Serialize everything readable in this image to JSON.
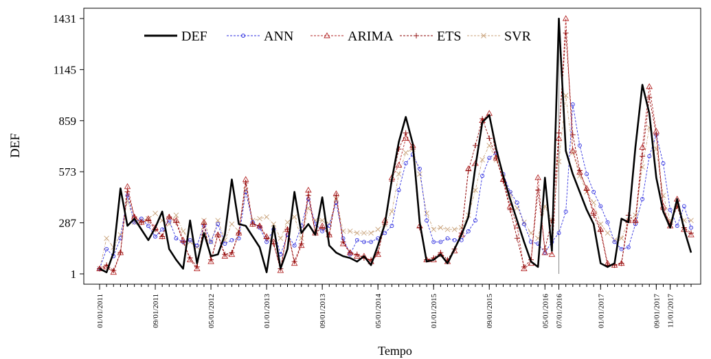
{
  "chart_data": {
    "type": "line",
    "xlabel": "Tempo",
    "ylabel": "DEF",
    "ylim": [
      1,
      1431
    ],
    "y_ticks": [
      1,
      287,
      573,
      859,
      1145,
      1431
    ],
    "x_ticks": [
      "01/01/2011",
      "09/01/2011",
      "05/01/2012",
      "01/01/2013",
      "09/01/2013",
      "05/01/2014",
      "01/01/2015",
      "09/01/2015",
      "05/01/2016",
      "07/01/2016",
      "01/01/2017",
      "09/01/2017",
      "11/01/2017"
    ],
    "x_tick_index": [
      0,
      8,
      16,
      24,
      32,
      40,
      48,
      56,
      64,
      66,
      72,
      80,
      82
    ],
    "vline_index": 66,
    "legend_position": "top",
    "grid": false,
    "series": [
      {
        "name": "DEF",
        "color": "#000000",
        "marker": "none",
        "values": [
          30,
          10,
          120,
          480,
          270,
          310,
          250,
          190,
          260,
          350,
          140,
          80,
          30,
          300,
          60,
          230,
          100,
          110,
          220,
          530,
          280,
          270,
          210,
          150,
          10,
          270,
          30,
          140,
          460,
          230,
          280,
          220,
          430,
          160,
          120,
          100,
          90,
          70,
          100,
          50,
          160,
          280,
          530,
          740,
          880,
          730,
          290,
          70,
          80,
          110,
          60,
          140,
          220,
          320,
          600,
          850,
          890,
          700,
          550,
          420,
          300,
          180,
          70,
          40,
          540,
          130,
          1431,
          690,
          560,
          460,
          360,
          280,
          60,
          40,
          60,
          310,
          290,
          710,
          1060,
          900,
          540,
          350,
          260,
          420,
          250,
          120
        ]
      },
      {
        "name": "ANN",
        "color": "#2b2bdf",
        "marker": "circle",
        "values": [
          30,
          140,
          100,
          200,
          440,
          290,
          310,
          270,
          210,
          250,
          300,
          200,
          180,
          190,
          160,
          270,
          180,
          280,
          170,
          190,
          200,
          460,
          290,
          260,
          180,
          250,
          110,
          220,
          160,
          270,
          420,
          280,
          240,
          270,
          400,
          200,
          110,
          190,
          180,
          180,
          200,
          230,
          270,
          470,
          620,
          670,
          590,
          300,
          180,
          180,
          200,
          190,
          190,
          240,
          300,
          550,
          650,
          680,
          560,
          460,
          400,
          280,
          180,
          170,
          120,
          180,
          230,
          350,
          950,
          720,
          560,
          460,
          380,
          290,
          180,
          140,
          150,
          280,
          420,
          660,
          780,
          620,
          360,
          270,
          380,
          260
        ]
      },
      {
        "name": "ARIMA",
        "color": "#b22222",
        "marker": "triangle",
        "values": [
          30,
          40,
          10,
          120,
          490,
          320,
          290,
          310,
          260,
          210,
          320,
          300,
          190,
          80,
          30,
          290,
          70,
          220,
          100,
          110,
          230,
          530,
          280,
          270,
          210,
          180,
          20,
          250,
          60,
          160,
          470,
          230,
          270,
          220,
          450,
          170,
          120,
          100,
          100,
          70,
          110,
          300,
          540,
          610,
          760,
          720,
          270,
          80,
          80,
          110,
          70,
          130,
          220,
          590,
          620,
          860,
          900,
          650,
          530,
          380,
          270,
          30,
          60,
          540,
          120,
          110,
          760,
          1431,
          690,
          570,
          480,
          350,
          250,
          60,
          50,
          60,
          300,
          300,
          710,
          1050,
          800,
          380,
          270,
          420,
          250,
          220
        ]
      },
      {
        "name": "ETS",
        "color": "#8b0000",
        "marker": "plus",
        "values": [
          30,
          50,
          20,
          120,
          460,
          320,
          290,
          300,
          250,
          210,
          320,
          290,
          180,
          90,
          40,
          280,
          80,
          220,
          110,
          120,
          230,
          510,
          280,
          270,
          200,
          170,
          30,
          250,
          70,
          170,
          440,
          230,
          260,
          220,
          440,
          180,
          120,
          110,
          90,
          80,
          120,
          280,
          520,
          700,
          790,
          700,
          260,
          80,
          90,
          120,
          80,
          140,
          230,
          580,
          720,
          870,
          760,
          650,
          520,
          360,
          200,
          40,
          80,
          470,
          140,
          300,
          790,
          1350,
          780,
          580,
          470,
          330,
          240,
          50,
          50,
          60,
          330,
          290,
          660,
          990,
          780,
          360,
          280,
          380,
          260,
          230
        ]
      },
      {
        "name": "SVR",
        "color": "#c8a27a",
        "marker": "cross",
        "values": [
          30,
          200,
          150,
          220,
          410,
          290,
          300,
          310,
          340,
          300,
          280,
          330,
          240,
          180,
          150,
          300,
          180,
          300,
          190,
          280,
          240,
          470,
          300,
          310,
          320,
          280,
          200,
          290,
          320,
          200,
          370,
          300,
          300,
          280,
          420,
          240,
          240,
          230,
          230,
          230,
          250,
          280,
          350,
          560,
          680,
          700,
          560,
          340,
          250,
          260,
          250,
          250,
          260,
          330,
          470,
          640,
          720,
          640,
          540,
          450,
          370,
          290,
          230,
          200,
          380,
          300,
          630,
          1000,
          680,
          550,
          460,
          400,
          280,
          230,
          190,
          200,
          300,
          330,
          600,
          820,
          700,
          440,
          300,
          380,
          300,
          300
        ]
      }
    ]
  }
}
